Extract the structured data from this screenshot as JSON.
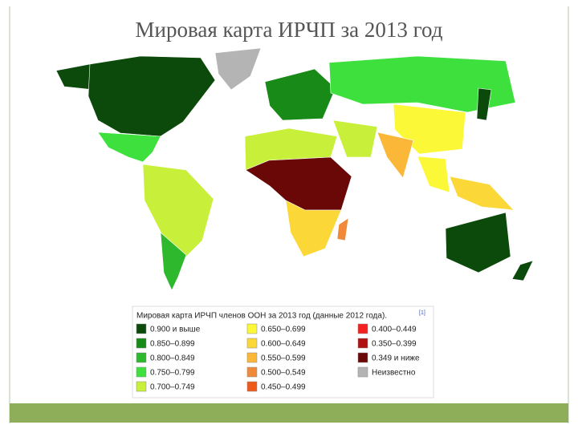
{
  "title": "Мировая карта ИРЧП за 2013 год",
  "legend": {
    "caption": "Мировая карта ИРЧП членов ООН за 2013 год (данные 2012 года).",
    "note": "[1]",
    "items": [
      {
        "label": "0.900 и выше",
        "color": "#0b4a0b"
      },
      {
        "label": "0.850–0.899",
        "color": "#178a17"
      },
      {
        "label": "0.800–0.849",
        "color": "#2db82d"
      },
      {
        "label": "0.750–0.799",
        "color": "#3ee03e"
      },
      {
        "label": "0.700–0.749",
        "color": "#c8f03a"
      },
      {
        "label": "0.650–0.699",
        "color": "#fbf838"
      },
      {
        "label": "0.600–0.649",
        "color": "#fbd838"
      },
      {
        "label": "0.550–0.599",
        "color": "#fbb838"
      },
      {
        "label": "0.500–0.549",
        "color": "#f08a3a"
      },
      {
        "label": "0.450–0.499",
        "color": "#ee5a1c"
      },
      {
        "label": "0.400–0.449",
        "color": "#f52020"
      },
      {
        "label": "0.350–0.399",
        "color": "#b01010"
      },
      {
        "label": "0.349 и ниже",
        "color": "#6a0808"
      },
      {
        "label": "Неизвестно",
        "color": "#b4b4b4"
      }
    ]
  }
}
